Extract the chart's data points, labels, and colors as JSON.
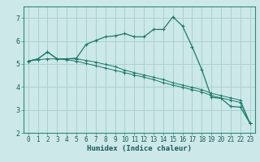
{
  "xlabel": "Humidex (Indice chaleur)",
  "background_color": "#cce8e8",
  "grid_color": "#aad0d0",
  "line_color": "#1a7a6a",
  "x_values": [
    0,
    1,
    2,
    3,
    4,
    5,
    6,
    7,
    8,
    9,
    10,
    11,
    12,
    13,
    14,
    15,
    16,
    17,
    18,
    19,
    20,
    21,
    22,
    23
  ],
  "line1_y": [
    5.12,
    5.22,
    5.52,
    5.22,
    5.22,
    5.25,
    5.85,
    6.02,
    6.18,
    6.22,
    6.32,
    6.18,
    6.18,
    6.5,
    6.5,
    7.05,
    6.65,
    5.75,
    4.75,
    3.55,
    3.5,
    3.15,
    3.12,
    2.42
  ],
  "line2_y": [
    5.12,
    5.22,
    5.52,
    5.22,
    5.22,
    5.22,
    5.15,
    5.08,
    4.98,
    4.88,
    4.73,
    4.62,
    4.52,
    4.42,
    4.32,
    4.18,
    4.08,
    3.98,
    3.88,
    3.72,
    3.62,
    3.52,
    3.42,
    2.42
  ],
  "line3_y": [
    5.12,
    5.18,
    5.22,
    5.22,
    5.18,
    5.12,
    5.02,
    4.92,
    4.82,
    4.72,
    4.62,
    4.52,
    4.42,
    4.32,
    4.18,
    4.08,
    3.98,
    3.88,
    3.78,
    3.62,
    3.52,
    3.42,
    3.32,
    2.42
  ],
  "ylim": [
    2,
    7.5
  ],
  "yticks": [
    2,
    3,
    4,
    5,
    6,
    7
  ],
  "xlim": [
    -0.5,
    23.5
  ],
  "tick_fontsize": 5.5,
  "xlabel_fontsize": 6.5
}
